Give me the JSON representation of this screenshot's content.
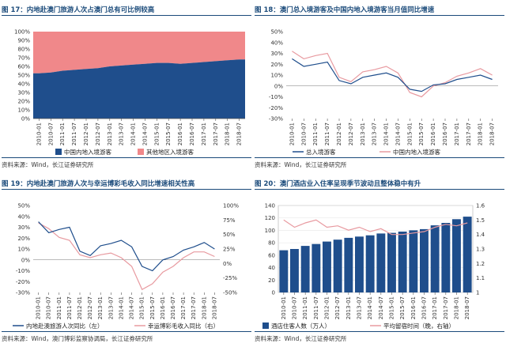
{
  "chart_data": [
    {
      "type": "area",
      "title": "图 17：内地赴澳门旅游人次占澳门总有可比例较高",
      "source": "资料来源：Wind，长江证券研究所",
      "x_labels": [
        "2010-01",
        "2010-07",
        "2011-01",
        "2011-07",
        "2012-01",
        "2012-07",
        "2013-01",
        "2013-07",
        "2014-01",
        "2014-07",
        "2015-01",
        "2015-07",
        "2016-01",
        "2016-07",
        "2017-01",
        "2017-07",
        "2018-01",
        "2018-07"
      ],
      "ylim": [
        0,
        100
      ],
      "y_ticks": [
        "0%",
        "10%",
        "20%",
        "30%",
        "40%",
        "50%",
        "60%",
        "70%",
        "80%",
        "90%",
        "100%"
      ],
      "series": [
        {
          "name": "中国内地入境游客",
          "color": "#1f4e8c",
          "values": [
            52,
            53,
            55,
            56,
            57,
            58,
            60,
            61,
            62,
            63,
            64,
            64,
            63,
            64,
            65,
            66,
            67,
            68
          ]
        },
        {
          "name": "其他地区入境游客",
          "color": "#f0888a",
          "values": [
            48,
            47,
            45,
            44,
            43,
            42,
            40,
            39,
            38,
            37,
            36,
            36,
            37,
            36,
            35,
            34,
            33,
            32
          ]
        }
      ]
    },
    {
      "type": "line",
      "title": "图 18：澳门总入境游客及中国内地入境游客当月值同比增速",
      "source": "资料来源：Wind，长江证券研究所",
      "x_labels": [
        "2010-01",
        "2010-07",
        "2011-01",
        "2011-07",
        "2012-01",
        "2012-07",
        "2013-01",
        "2013-07",
        "2014-01",
        "2014-07",
        "2015-01",
        "2015-07",
        "2016-01",
        "2016-07",
        "2017-01",
        "2017-07",
        "2018-01",
        "2018-07"
      ],
      "ylim": [
        -30,
        50
      ],
      "y_ticks": [
        "-30%",
        "-20%",
        "-10%",
        "0%",
        "10%",
        "20%",
        "30%",
        "40%",
        "50%"
      ],
      "series": [
        {
          "name": "总入境游客",
          "color": "#1f4e8c",
          "values": [
            25,
            18,
            20,
            22,
            5,
            2,
            8,
            10,
            12,
            8,
            -3,
            -5,
            1,
            2,
            6,
            8,
            10,
            6
          ]
        },
        {
          "name": "中国内地入境游客",
          "color": "#e89aa0",
          "values": [
            32,
            25,
            28,
            30,
            8,
            4,
            13,
            15,
            18,
            12,
            -6,
            -10,
            0,
            3,
            9,
            12,
            16,
            10
          ]
        }
      ]
    },
    {
      "type": "line",
      "title": "图 19：内地赴澳门旅游人次与幸运博彩毛收入同比增速相关性高",
      "source": "资料来源：Wind，澳门博彩监察协调局，长江证券研究所",
      "x_labels": [
        "2010-01",
        "2010-07",
        "2011-01",
        "2011-07",
        "2012-01",
        "2012-07",
        "2013-01",
        "2013-07",
        "2014-01",
        "2014-07",
        "2015-01",
        "2015-07",
        "2016-01",
        "2016-07",
        "2017-01",
        "2017-07",
        "2018-01",
        "2018-07"
      ],
      "ylim_left": [
        -30,
        50
      ],
      "y_ticks_left": [
        "-30%",
        "-20%",
        "-10%",
        "0%",
        "10%",
        "20%",
        "30%",
        "40%",
        "50%"
      ],
      "ylim_right": [
        -50,
        100
      ],
      "y_ticks_right": [
        "-50%",
        "-25%",
        "0%",
        "25%",
        "50%",
        "75%",
        "100%"
      ],
      "series": [
        {
          "name": "内地赴澳旅游人次同比（左）",
          "color": "#1f4e8c",
          "axis": "left",
          "values": [
            35,
            25,
            28,
            30,
            8,
            4,
            13,
            15,
            18,
            12,
            -6,
            -10,
            0,
            3,
            9,
            12,
            16,
            10
          ]
        },
        {
          "name": "幸运博彩毛收入同比（右）",
          "color": "#e89aa0",
          "axis": "right",
          "values": [
            70,
            60,
            45,
            40,
            15,
            10,
            15,
            18,
            10,
            -5,
            -45,
            -35,
            -15,
            -5,
            10,
            20,
            20,
            12
          ]
        }
      ]
    },
    {
      "type": "bar",
      "title": "图 20：澳门酒店业入住率呈现季节波动且整体稳中有升",
      "source": "资料来源：Wind，长江证券研究所",
      "x_labels": [
        "2010-01",
        "2010-07",
        "2011-01",
        "2011-07",
        "2012-01",
        "2012-07",
        "2013-01",
        "2013-07",
        "2014-01",
        "2014-07",
        "2015-01",
        "2015-07",
        "2016-01",
        "2016-07",
        "2017-01",
        "2017-07",
        "2018-01",
        "2018-07"
      ],
      "ylim_left": [
        0,
        140
      ],
      "y_ticks_left": [
        "0",
        "20",
        "40",
        "60",
        "80",
        "100",
        "120",
        "140"
      ],
      "ylim_right": [
        1.0,
        1.6
      ],
      "y_ticks_right": [
        "1",
        "1.1",
        "1.2",
        "1.3",
        "1.4",
        "1.5",
        "1.6"
      ],
      "series": [
        {
          "name": "酒店住客人数（万人）",
          "color": "#1f4e8c",
          "axis": "left",
          "values": [
            68,
            70,
            75,
            78,
            82,
            85,
            88,
            90,
            92,
            95,
            96,
            98,
            100,
            102,
            108,
            112,
            118,
            122
          ]
        },
        {
          "name": "平均留宿时间（晚，右轴）",
          "color": "#e89aa0",
          "axis": "right",
          "values": [
            1.5,
            1.45,
            1.48,
            1.5,
            1.45,
            1.46,
            1.43,
            1.45,
            1.42,
            1.44,
            1.4,
            1.4,
            1.41,
            1.42,
            1.45,
            1.47,
            1.46,
            1.48
          ]
        }
      ]
    }
  ]
}
